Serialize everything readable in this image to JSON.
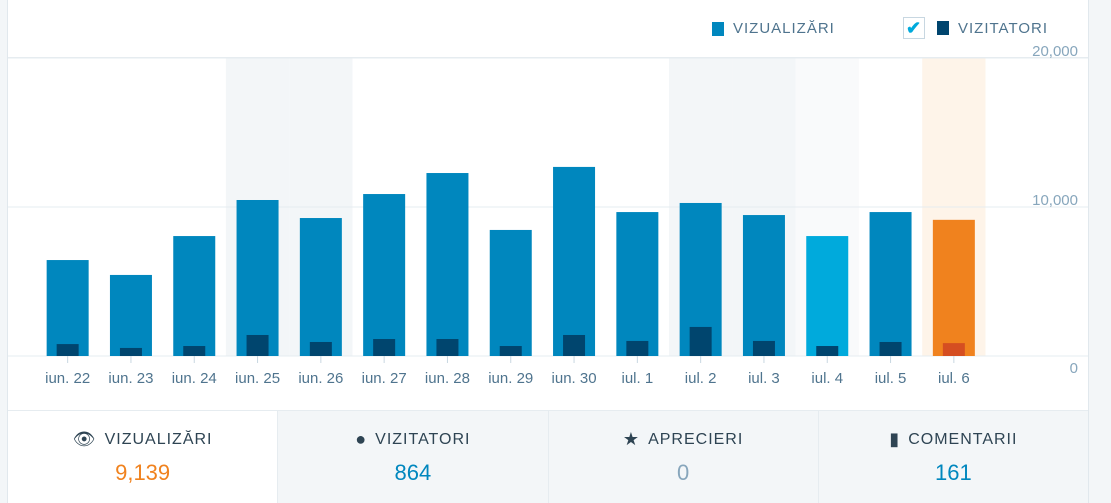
{
  "legend": {
    "views": "VIZUALIZĂRI",
    "visitors": "VIZITATORI",
    "visitors_checked": true
  },
  "colors": {
    "views": "#0087be",
    "visitors": "#00456e",
    "highlight": "#f0821e",
    "highlight_visitors": "#d54e21",
    "hover": "#00aadc"
  },
  "chart_data": {
    "type": "bar",
    "categories": [
      "iun. 22",
      "iun. 23",
      "iun. 24",
      "iun. 25",
      "iun. 26",
      "iun. 27",
      "iun. 28",
      "iun. 29",
      "iun. 30",
      "iul. 1",
      "iul. 2",
      "iul. 3",
      "iul. 4",
      "iul. 5",
      "iul. 6"
    ],
    "series": [
      {
        "name": "VIZUALIZĂRI",
        "values": [
          6440,
          5440,
          8050,
          10470,
          9260,
          10870,
          12280,
          8460,
          12690,
          9660,
          10270,
          9460,
          8050,
          9660,
          9139
        ]
      },
      {
        "name": "VIZITATORI",
        "values": [
          800,
          540,
          670,
          1410,
          940,
          1140,
          1140,
          670,
          1410,
          1010,
          1950,
          1010,
          670,
          940,
          864
        ]
      }
    ],
    "ylim": [
      0,
      20000
    ],
    "yticks": [
      "0",
      "10,000",
      "20,000"
    ],
    "selected_index": 14,
    "hover_index": 12,
    "weekend_indices": [
      3,
      4,
      10,
      11
    ],
    "grid": true
  },
  "tabs": [
    {
      "label": "VIZUALIZĂRI",
      "value": "9,139",
      "icon": "eye-icon",
      "color": "#f0821e"
    },
    {
      "label": "VIZITATORI",
      "value": "864",
      "icon": "person-icon",
      "color": "#0087be"
    },
    {
      "label": "APRECIERI",
      "value": "0",
      "icon": "star-icon",
      "color": "#87a6bc"
    },
    {
      "label": "COMENTARII",
      "value": "161",
      "icon": "comment-icon",
      "color": "#0087be"
    }
  ]
}
